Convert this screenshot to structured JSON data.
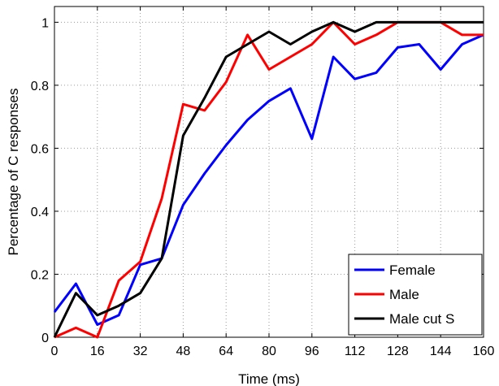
{
  "chart_data": {
    "type": "line",
    "title": "",
    "xlabel": "Time (ms)",
    "ylabel": "Percentage of C responses",
    "xlim": [
      0,
      160
    ],
    "ylim": [
      0,
      1.05
    ],
    "x_ticks": [
      0,
      16,
      32,
      48,
      64,
      80,
      96,
      112,
      128,
      144,
      160
    ],
    "y_ticks": [
      0,
      0.2,
      0.4,
      0.6,
      0.8,
      1
    ],
    "y_tick_labels": [
      "0",
      "0.2",
      "0.4",
      "0.6",
      "0.8",
      "1"
    ],
    "grid": true,
    "legend_position": "bottom-right",
    "x": [
      0,
      8,
      16,
      24,
      32,
      40,
      48,
      56,
      64,
      72,
      80,
      88,
      96,
      104,
      112,
      120,
      128,
      136,
      144,
      152,
      160
    ],
    "series": [
      {
        "name": "Female",
        "color": "#0000ff",
        "values": [
          0.08,
          0.17,
          0.04,
          0.07,
          0.23,
          0.25,
          0.42,
          0.52,
          0.61,
          0.69,
          0.75,
          0.79,
          0.63,
          0.89,
          0.82,
          0.84,
          0.92,
          0.93,
          0.85,
          0.93,
          0.96
        ]
      },
      {
        "name": "Male",
        "color": "#ff0000",
        "values": [
          0.0,
          0.03,
          0.0,
          0.18,
          0.24,
          0.44,
          0.74,
          0.72,
          0.81,
          0.96,
          0.85,
          0.89,
          0.93,
          1.0,
          0.93,
          0.96,
          1.0,
          1.0,
          1.0,
          0.96,
          0.96
        ]
      },
      {
        "name": "Male cut S",
        "color": "#000000",
        "x": [
          0,
          8,
          16,
          24,
          32,
          40,
          48,
          56,
          64,
          72,
          80,
          88,
          96,
          104,
          112,
          120,
          128,
          136,
          144,
          152,
          160
        ],
        "values": [
          0.0,
          0.14,
          0.07,
          0.1,
          0.14,
          0.25,
          0.64,
          0.76,
          0.89,
          0.93,
          0.97,
          0.93,
          0.97,
          1.0,
          0.97,
          1.0,
          1.0,
          1.0,
          1.0,
          1.0,
          1.0
        ]
      }
    ]
  }
}
